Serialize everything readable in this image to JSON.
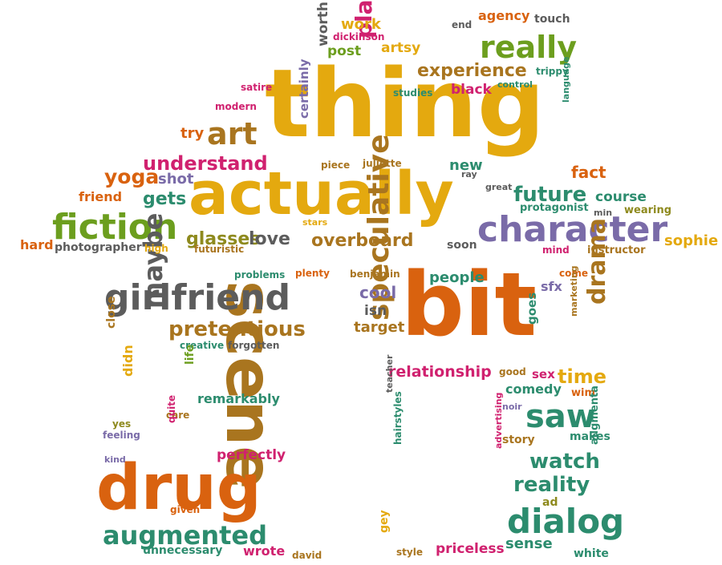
{
  "palette": {
    "gold": "#E4A90F",
    "orange": "#D9620F",
    "green": "#6C9E1E",
    "teal": "#2C8C6E",
    "purple": "#7A6BA8",
    "magenta": "#D0216F",
    "gray": "#5C5C5C",
    "brown": "#A9751F",
    "olive": "#8E8A1E"
  },
  "words": [
    "thing",
    "actually",
    "bit",
    "scene",
    "drug",
    "character",
    "girlfriend",
    "fiction",
    "really",
    "overboard",
    "art",
    "understand",
    "experience",
    "play",
    "speculative",
    "maybe",
    "pretentious",
    "saw",
    "dialog",
    "augmented",
    "relationship",
    "cool",
    "people",
    "drama",
    "time",
    "watch",
    "reality",
    "future",
    "glasses",
    "love",
    "yoga",
    "gets",
    "friend",
    "hard",
    "photographer",
    "high",
    "futuristic",
    "course",
    "sophie",
    "instructor",
    "mind",
    "wearing",
    "min",
    "protagonist",
    "great",
    "fact",
    "new",
    "ray",
    "juliette",
    "piece",
    "certainly",
    "shot",
    "try",
    "modern",
    "satire",
    "worth",
    "post",
    "artsy",
    "dickinson",
    "work",
    "end",
    "agency",
    "touch",
    "trippy",
    "control",
    "studies",
    "black",
    "language",
    "stars",
    "soon",
    "problems",
    "plenty",
    "benjamin",
    "isn",
    "target",
    "sfx",
    "come",
    "goes",
    "marketing",
    "creative",
    "forgotten",
    "close",
    "didn",
    "life",
    "remarkably",
    "care",
    "yes",
    "feeling",
    "quite",
    "kind",
    "perfectly",
    "given",
    "unnecessary",
    "wrote",
    "david",
    "hairstyles",
    "teacher",
    "gey",
    "style",
    "priceless",
    "sense",
    "white",
    "comedy",
    "good",
    "sex",
    "wim",
    "noir",
    "makes",
    "story",
    "advertising",
    "augmenta",
    "ad"
  ]
}
